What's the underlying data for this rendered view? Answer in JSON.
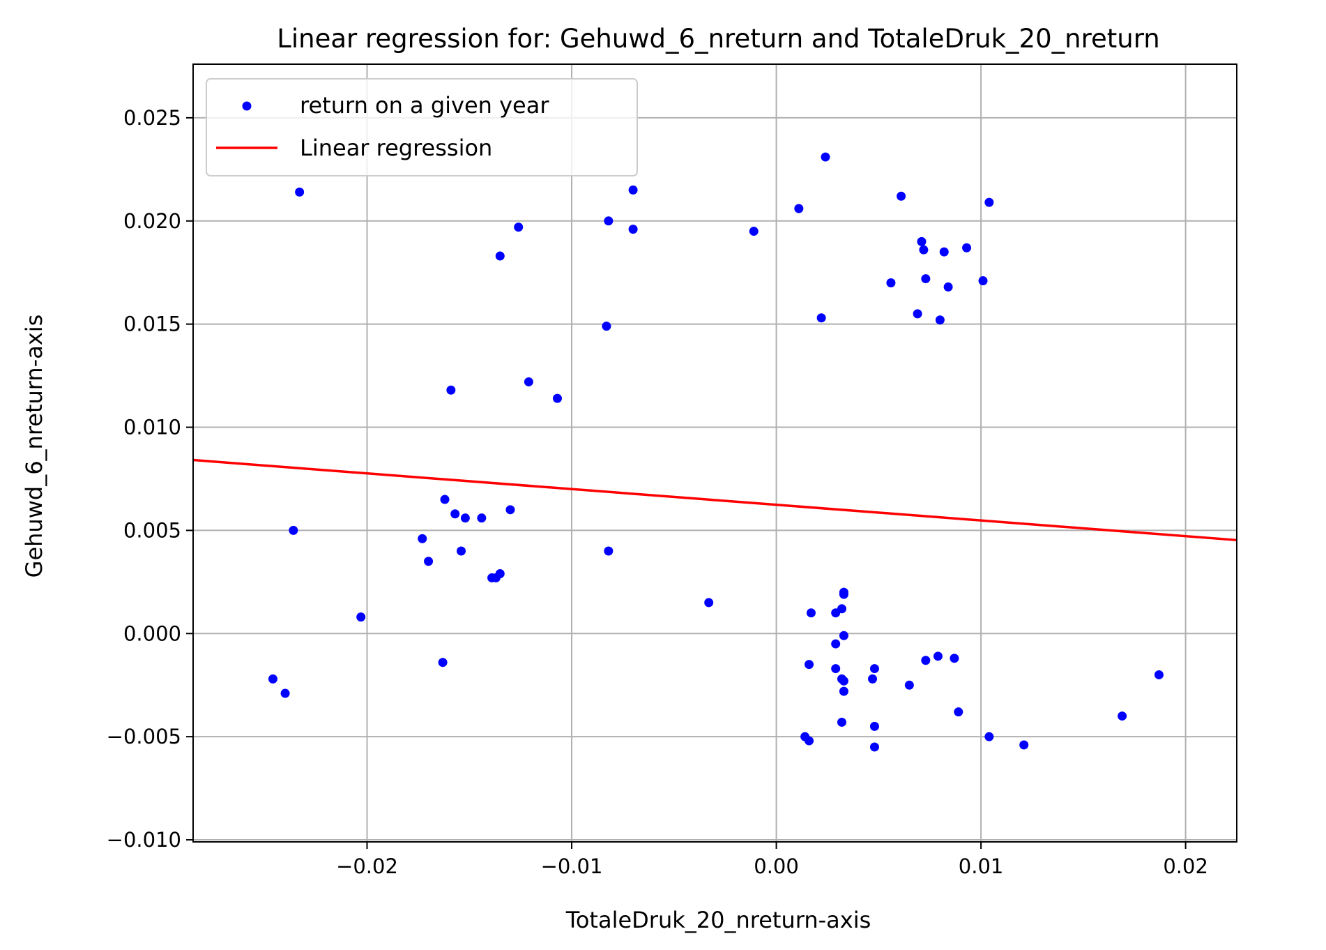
{
  "chart_data": {
    "type": "scatter",
    "title": "Linear regression for: Gehuwd_6_nreturn and TotaleDruk_20_nreturn",
    "xlabel": "TotaleDruk_20_nreturn-axis",
    "ylabel": "Gehuwd_6_nreturn-axis",
    "xlim": [
      -0.0285,
      0.0225
    ],
    "ylim": [
      -0.0101,
      0.0276
    ],
    "grid": true,
    "legend_position": "upper-left",
    "x_ticks": [
      -0.02,
      -0.01,
      0.0,
      0.01,
      0.02
    ],
    "x_tick_labels": [
      "−0.02",
      "−0.01",
      "0.00",
      "0.01",
      "0.02"
    ],
    "y_ticks": [
      -0.01,
      -0.005,
      0.0,
      0.005,
      0.01,
      0.015,
      0.02,
      0.025
    ],
    "y_tick_labels": [
      "−0.010",
      "−0.005",
      "0.000",
      "0.005",
      "0.010",
      "0.015",
      "0.020",
      "0.025"
    ],
    "series": [
      {
        "name": "return on a given year",
        "type": "scatter",
        "color": "#0000ff",
        "points": [
          [
            -0.0233,
            0.0214
          ],
          [
            -0.0236,
            0.005
          ],
          [
            -0.0203,
            0.0008
          ],
          [
            -0.0246,
            -0.0022
          ],
          [
            -0.024,
            -0.0029
          ],
          [
            -0.0135,
            0.0183
          ],
          [
            -0.0126,
            0.0197
          ],
          [
            -0.0121,
            0.0122
          ],
          [
            -0.0107,
            0.0114
          ],
          [
            -0.0159,
            0.0118
          ],
          [
            -0.0162,
            0.0065
          ],
          [
            -0.0157,
            0.0058
          ],
          [
            -0.0152,
            0.0056
          ],
          [
            -0.0144,
            0.0056
          ],
          [
            -0.013,
            0.006
          ],
          [
            -0.0173,
            0.0046
          ],
          [
            -0.017,
            0.0035
          ],
          [
            -0.0154,
            0.004
          ],
          [
            -0.0139,
            0.0027
          ],
          [
            -0.0137,
            0.0027
          ],
          [
            -0.0135,
            0.0029
          ],
          [
            -0.0163,
            -0.0014
          ],
          [
            -0.0082,
            0.02
          ],
          [
            -0.007,
            0.0215
          ],
          [
            -0.007,
            0.0196
          ],
          [
            -0.0083,
            0.0149
          ],
          [
            -0.0082,
            0.004
          ],
          [
            -0.0033,
            0.0015
          ],
          [
            -0.0011,
            0.0195
          ],
          [
            0.0011,
            0.0206
          ],
          [
            0.0024,
            0.0231
          ],
          [
            0.0022,
            0.0153
          ],
          [
            0.0061,
            0.0212
          ],
          [
            0.0056,
            0.017
          ],
          [
            0.0069,
            0.0155
          ],
          [
            0.0071,
            0.019
          ],
          [
            0.0072,
            0.0186
          ],
          [
            0.0073,
            0.0172
          ],
          [
            0.008,
            0.0152
          ],
          [
            0.0082,
            0.0185
          ],
          [
            0.0084,
            0.0168
          ],
          [
            0.0093,
            0.0187
          ],
          [
            0.0101,
            0.0171
          ],
          [
            0.0104,
            0.0209
          ],
          [
            0.0017,
            0.001
          ],
          [
            0.0029,
            0.001
          ],
          [
            0.0032,
            0.0012
          ],
          [
            0.0033,
            0.002
          ],
          [
            0.0033,
            0.0019
          ],
          [
            0.0033,
            -0.0001
          ],
          [
            0.0029,
            -0.0005
          ],
          [
            0.0016,
            -0.0015
          ],
          [
            0.0029,
            -0.0017
          ],
          [
            0.0032,
            -0.0022
          ],
          [
            0.0033,
            -0.0023
          ],
          [
            0.0033,
            -0.0028
          ],
          [
            0.0048,
            -0.0017
          ],
          [
            0.0047,
            -0.0022
          ],
          [
            0.0065,
            -0.0025
          ],
          [
            0.0073,
            -0.0013
          ],
          [
            0.0079,
            -0.0011
          ],
          [
            0.0087,
            -0.0012
          ],
          [
            0.0089,
            -0.0038
          ],
          [
            0.0032,
            -0.0043
          ],
          [
            0.0048,
            -0.0045
          ],
          [
            0.0014,
            -0.005
          ],
          [
            0.0016,
            -0.0052
          ],
          [
            0.0048,
            -0.0055
          ],
          [
            0.0104,
            -0.005
          ],
          [
            0.0121,
            -0.0054
          ],
          [
            0.0169,
            -0.004
          ],
          [
            0.0187,
            -0.002
          ]
        ]
      },
      {
        "name": "Linear regression",
        "type": "line",
        "color": "#ff0000",
        "x": [
          -0.0285,
          0.0225
        ],
        "y": [
          0.00841,
          0.00453
        ]
      }
    ]
  }
}
